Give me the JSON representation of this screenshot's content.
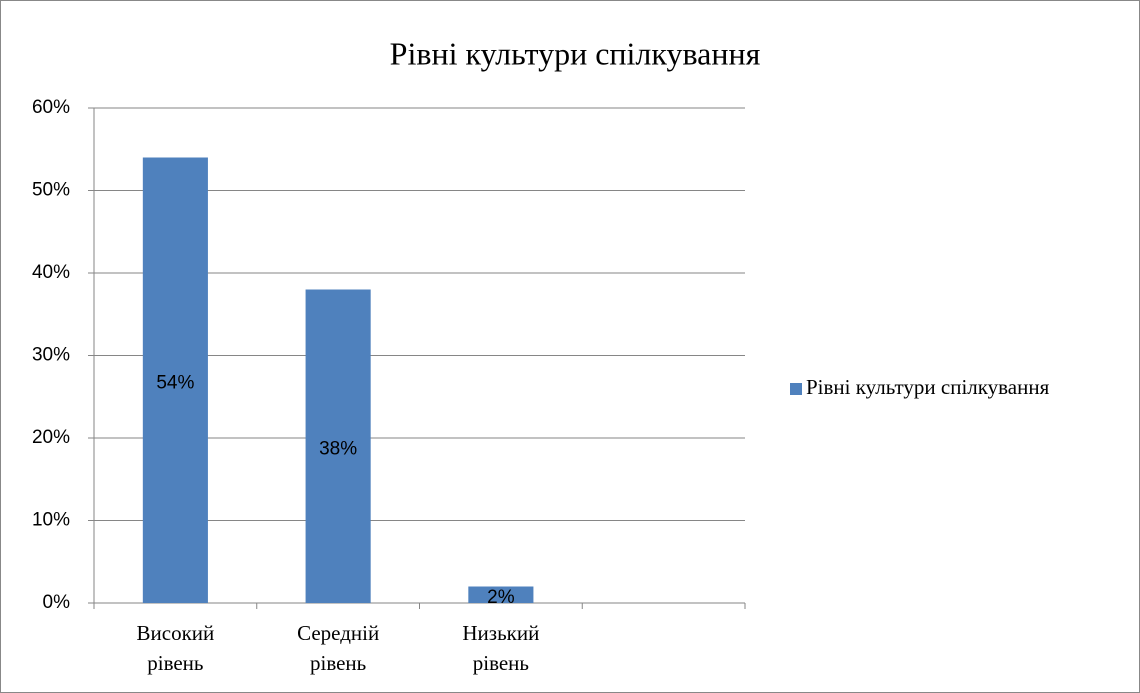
{
  "chart_data": {
    "type": "bar",
    "title": "Рівні культури спілкування",
    "categories": [
      "Високий рівень",
      "Середній рівень",
      "Низький рівень",
      null
    ],
    "series": [
      {
        "name": "Рівні культури спілкування",
        "color": "#4f81bd",
        "values": [
          54,
          38,
          2,
          null
        ],
        "value_labels": [
          "54%",
          "38%",
          "2%",
          null
        ]
      }
    ],
    "ylim": [
      0,
      60
    ],
    "yticks": [
      {
        "value": 0,
        "label": "0%"
      },
      {
        "value": 10,
        "label": "10%"
      },
      {
        "value": 20,
        "label": "20%"
      },
      {
        "value": 30,
        "label": "30%"
      },
      {
        "value": 40,
        "label": "40%"
      },
      {
        "value": 50,
        "label": "50%"
      },
      {
        "value": 60,
        "label": "60%"
      }
    ],
    "grid": true,
    "legend": "right"
  }
}
